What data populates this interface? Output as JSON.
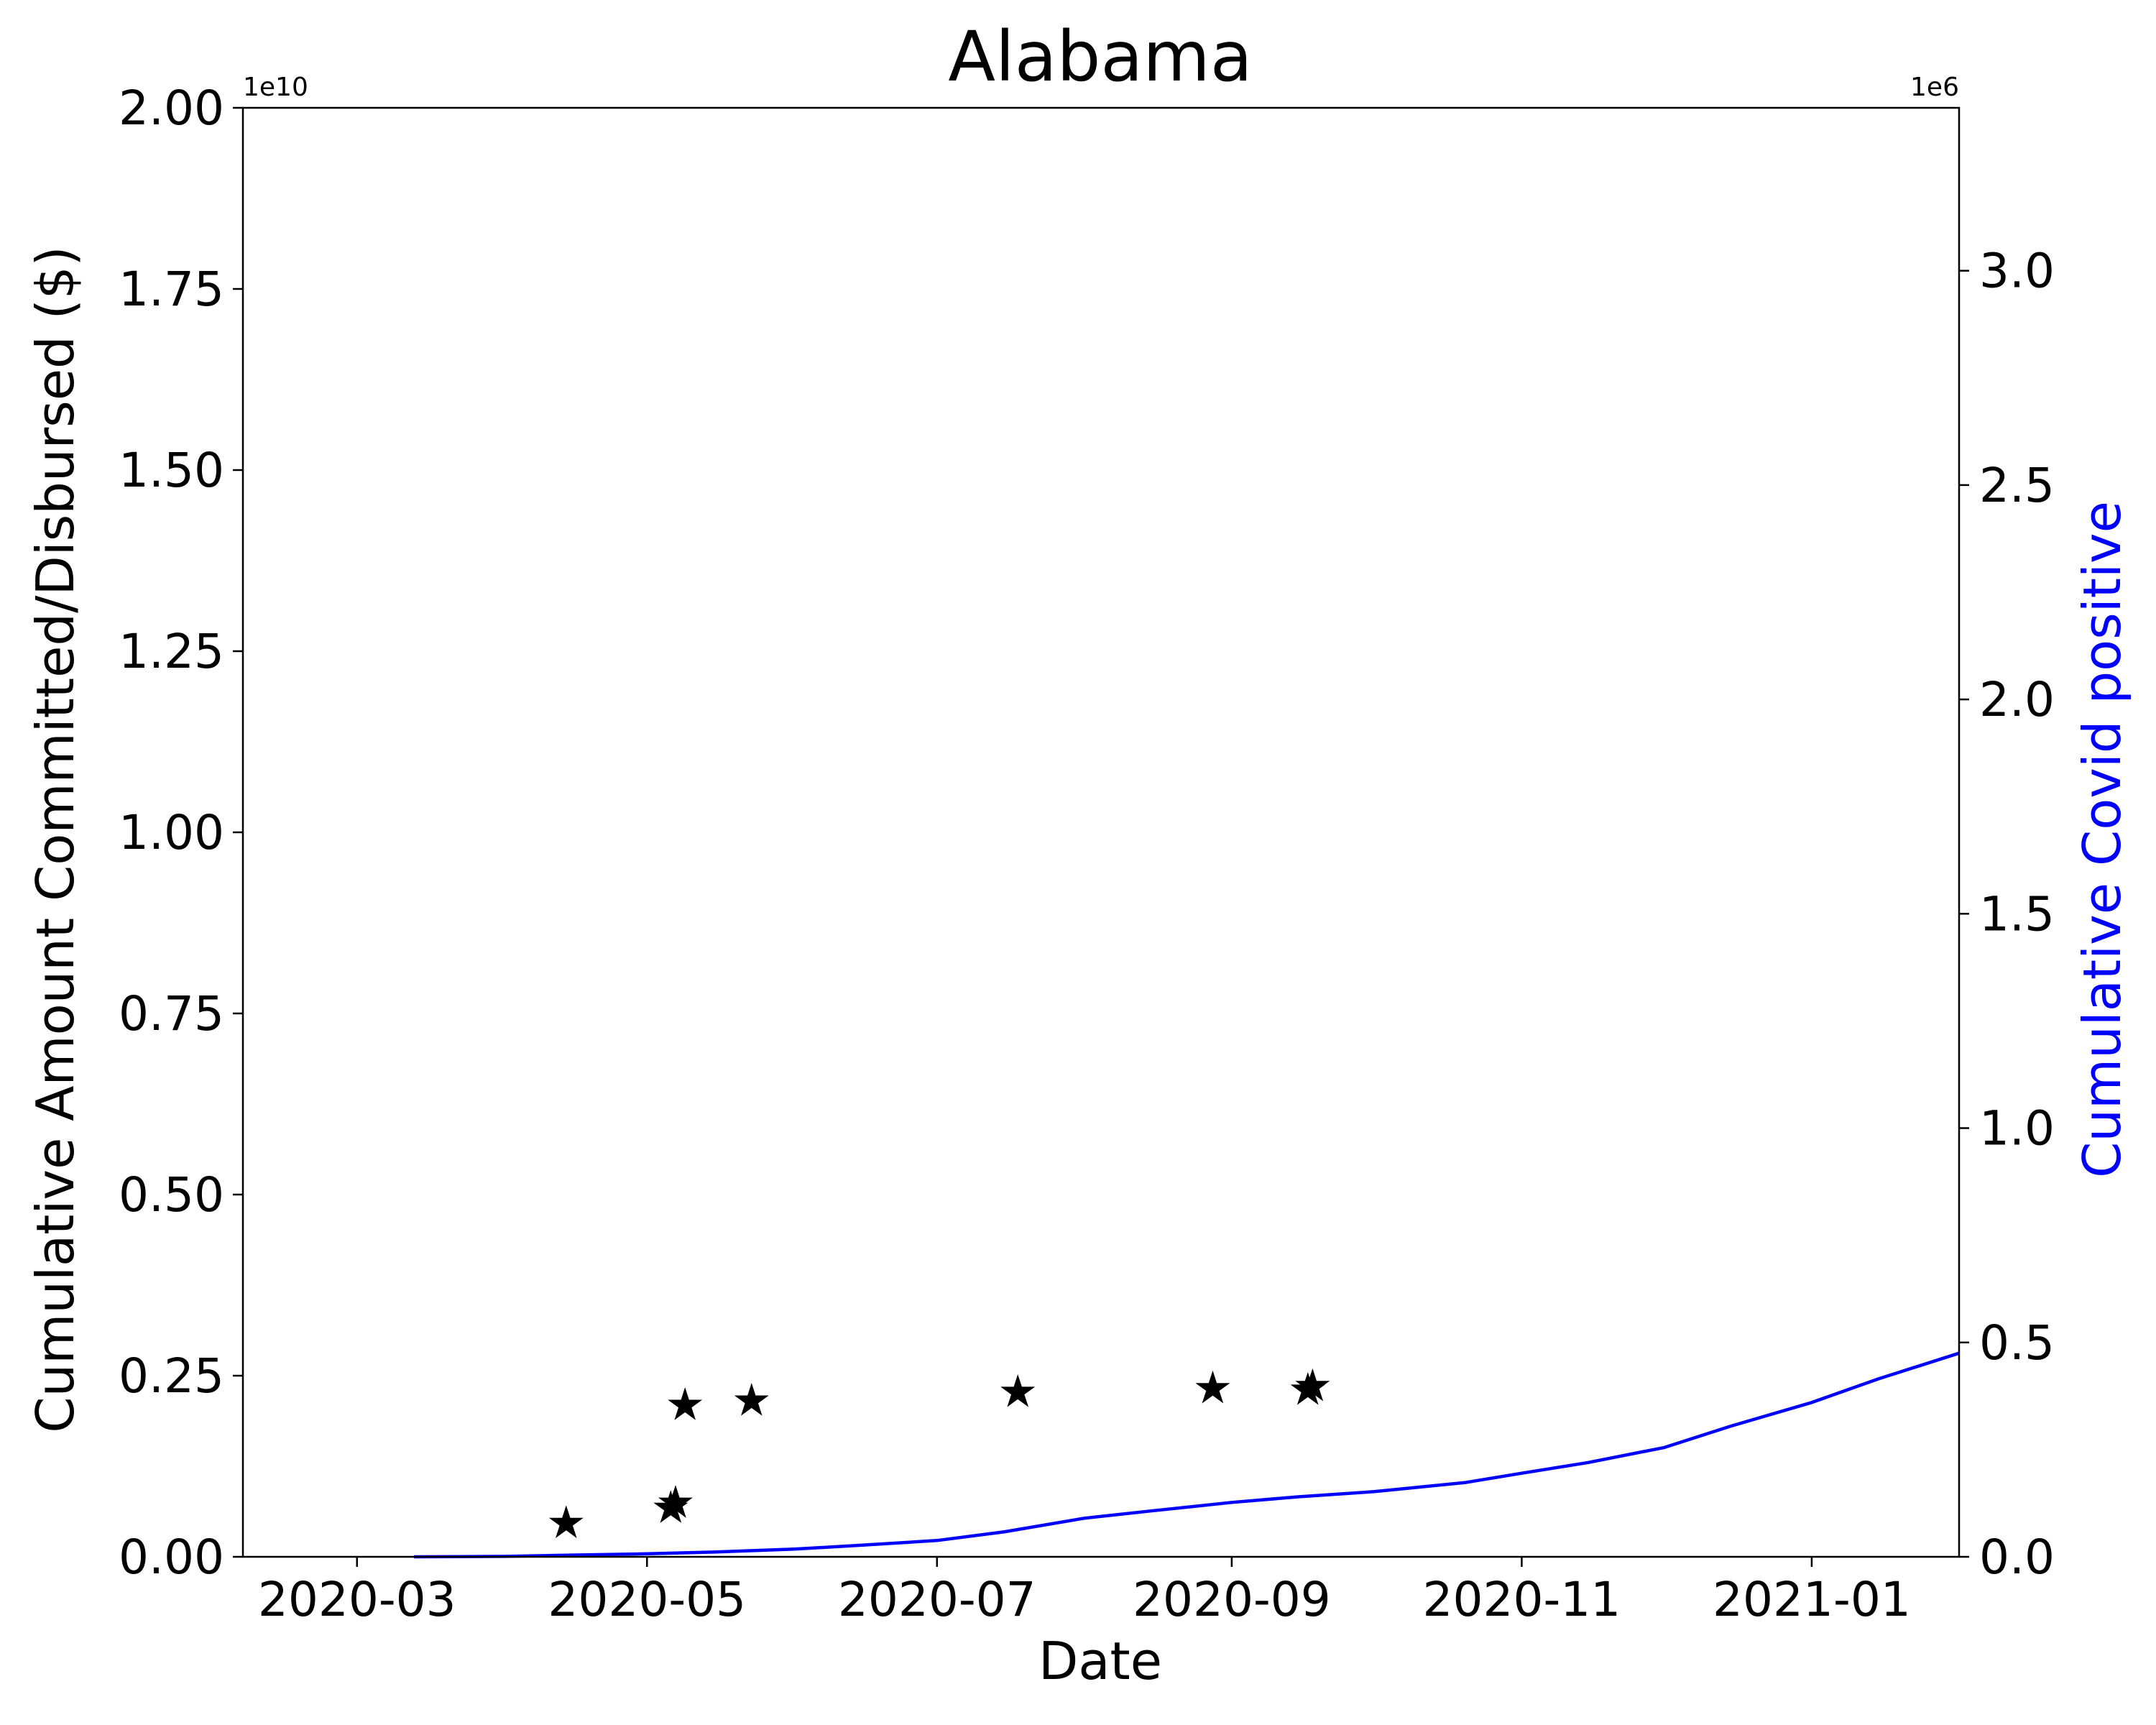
{
  "chart_data": {
    "type": "scatter",
    "title": "Alabama",
    "xlabel": "Date",
    "ylabel": "Cumulative Amount Committed/Disbursed ($)",
    "y2label": "Cumulative Covid positive",
    "y_offset_label": "1e10",
    "y2_offset_label": "1e6",
    "xlim": [
      "2020-02-06",
      "2021-02-01"
    ],
    "ylim": [
      0,
      2.0
    ],
    "y2lim": [
      0,
      3.38
    ],
    "x_ticks": [
      "2020-03",
      "2020-05",
      "2020-07",
      "2020-09",
      "2020-11",
      "2021-01"
    ],
    "y_ticks": [
      "0.00",
      "0.25",
      "0.50",
      "0.75",
      "1.00",
      "1.25",
      "1.50",
      "1.75",
      "2.00"
    ],
    "y2_ticks": [
      "0.0",
      "0.5",
      "1.0",
      "1.5",
      "2.0",
      "2.5",
      "3.0"
    ],
    "colors": {
      "line": "#0000ff",
      "markers": "#000000",
      "y2label": "#0000ff"
    },
    "grid": false,
    "series": [
      {
        "axis": "left",
        "marker": "star",
        "x": [
          "2020-04-14",
          "2020-05-06",
          "2020-05-07",
          "2020-05-09",
          "2020-05-23",
          "2020-07-18",
          "2020-08-28",
          "2020-09-17",
          "2020-09-18"
        ],
        "y": [
          0.046,
          0.067,
          0.074,
          0.209,
          0.215,
          0.227,
          0.232,
          0.23,
          0.235
        ]
      },
      {
        "axis": "right",
        "x": [
          "2020-03-13",
          "2020-04-01",
          "2020-04-15",
          "2020-05-01",
          "2020-05-15",
          "2020-06-01",
          "2020-06-15",
          "2020-07-01",
          "2020-07-15",
          "2020-08-01",
          "2020-08-15",
          "2020-09-01",
          "2020-09-15",
          "2020-10-01",
          "2020-10-20",
          "2020-11-01",
          "2020-11-15",
          "2020-12-01",
          "2020-12-15",
          "2021-01-01",
          "2021-01-15",
          "2021-02-01"
        ],
        "y": [
          0.0,
          0.001,
          0.004,
          0.007,
          0.011,
          0.018,
          0.027,
          0.038,
          0.058,
          0.09,
          0.107,
          0.127,
          0.14,
          0.152,
          0.173,
          0.195,
          0.22,
          0.255,
          0.305,
          0.36,
          0.415,
          0.475
        ]
      }
    ]
  }
}
